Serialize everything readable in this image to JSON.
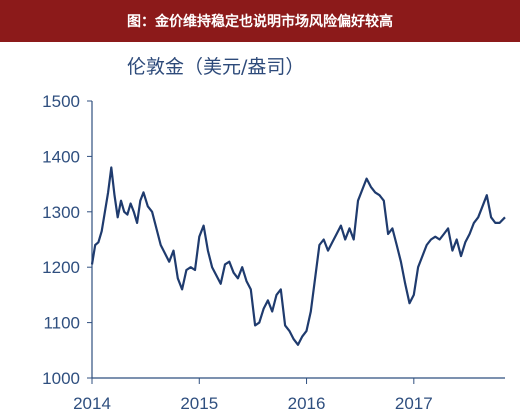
{
  "banner": {
    "title": "图：金价维持稳定也说明市场风险偏好较高"
  },
  "chart_data": {
    "type": "line",
    "title": "",
    "unit_label": "伦敦金（美元/盎司）",
    "xlabel": "",
    "ylabel": "",
    "x_ticks": [
      "2014",
      "2015",
      "2016",
      "2017"
    ],
    "y_ticks": [
      "1000",
      "1100",
      "1200",
      "1300",
      "1400",
      "1500"
    ],
    "xlim": [
      2014.0,
      2017.85
    ],
    "ylim": [
      1000,
      1500
    ],
    "grid": false,
    "series": [
      {
        "color": "#1f3b6e",
        "x": [
          2014.0,
          2014.03,
          2014.06,
          2014.09,
          2014.12,
          2014.15,
          2014.18,
          2014.21,
          2014.24,
          2014.27,
          2014.3,
          2014.33,
          2014.36,
          2014.39,
          2014.42,
          2014.45,
          2014.48,
          2014.52,
          2014.56,
          2014.6,
          2014.64,
          2014.68,
          2014.72,
          2014.76,
          2014.8,
          2014.84,
          2014.88,
          2014.92,
          2014.96,
          2015.0,
          2015.04,
          2015.08,
          2015.12,
          2015.16,
          2015.2,
          2015.24,
          2015.28,
          2015.32,
          2015.36,
          2015.4,
          2015.44,
          2015.48,
          2015.52,
          2015.56,
          2015.6,
          2015.64,
          2015.68,
          2015.72,
          2015.76,
          2015.8,
          2015.84,
          2015.88,
          2015.92,
          2015.96,
          2016.0,
          2016.04,
          2016.08,
          2016.12,
          2016.16,
          2016.2,
          2016.24,
          2016.28,
          2016.32,
          2016.36,
          2016.4,
          2016.44,
          2016.48,
          2016.52,
          2016.56,
          2016.6,
          2016.64,
          2016.68,
          2016.72,
          2016.76,
          2016.8,
          2016.84,
          2016.88,
          2016.92,
          2016.96,
          2017.0,
          2017.04,
          2017.08,
          2017.12,
          2017.16,
          2017.2,
          2017.24,
          2017.28,
          2017.32,
          2017.36,
          2017.4,
          2017.44,
          2017.48,
          2017.52,
          2017.56,
          2017.6,
          2017.64,
          2017.68,
          2017.72,
          2017.76,
          2017.8,
          2017.85
        ],
        "y": [
          1205,
          1240,
          1245,
          1265,
          1300,
          1335,
          1380,
          1330,
          1290,
          1320,
          1300,
          1295,
          1315,
          1300,
          1280,
          1320,
          1335,
          1310,
          1300,
          1270,
          1240,
          1225,
          1210,
          1230,
          1180,
          1160,
          1195,
          1200,
          1195,
          1255,
          1275,
          1230,
          1200,
          1185,
          1170,
          1205,
          1210,
          1190,
          1180,
          1200,
          1175,
          1160,
          1095,
          1100,
          1125,
          1140,
          1120,
          1150,
          1160,
          1095,
          1085,
          1070,
          1060,
          1075,
          1085,
          1120,
          1180,
          1240,
          1250,
          1230,
          1245,
          1260,
          1275,
          1250,
          1270,
          1250,
          1320,
          1340,
          1360,
          1345,
          1335,
          1330,
          1320,
          1260,
          1270,
          1240,
          1210,
          1170,
          1135,
          1150,
          1200,
          1220,
          1240,
          1250,
          1255,
          1250,
          1260,
          1270,
          1230,
          1250,
          1220,
          1245,
          1260,
          1280,
          1290,
          1310,
          1330,
          1290,
          1280,
          1280,
          1290
        ]
      }
    ]
  }
}
